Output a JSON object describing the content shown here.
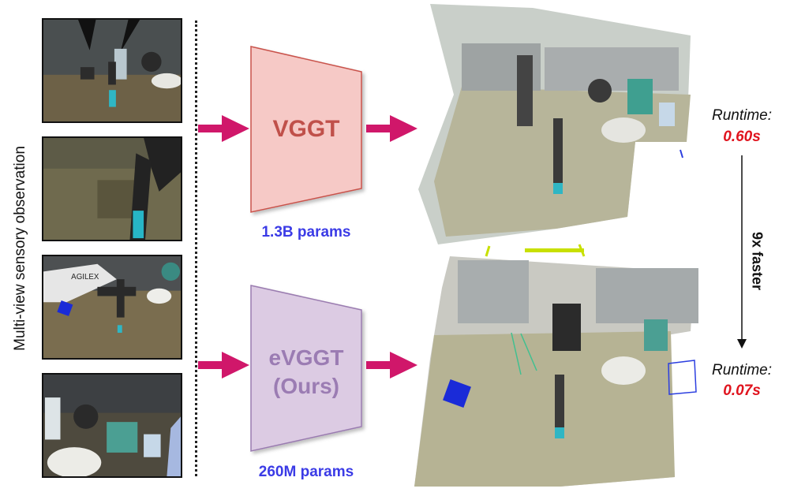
{
  "side_label": "Multi-view sensory observation",
  "views": [
    {
      "name": "camera-view-1",
      "brand_text": ""
    },
    {
      "name": "camera-view-2",
      "brand_text": ""
    },
    {
      "name": "camera-view-3",
      "brand_text": "AGILEX"
    },
    {
      "name": "camera-view-4",
      "brand_text": ""
    }
  ],
  "models": [
    {
      "name": "VGGT",
      "params": "1.3B params",
      "fill": "#f6c9c6",
      "stroke": "#c9534c",
      "text_color": "#c0504a"
    },
    {
      "name_line1": "eVGGT",
      "name_line2": "(Ours)",
      "params": "260M params",
      "fill": "#dccbe3",
      "stroke": "#9a7bb0",
      "text_color": "#9b7cb3"
    }
  ],
  "arrow_color": "#d0176a",
  "runtime": {
    "label": "Runtime:",
    "vggt_value": "0.60s",
    "evggt_value": "0.07s",
    "speedup": "9x faster"
  }
}
